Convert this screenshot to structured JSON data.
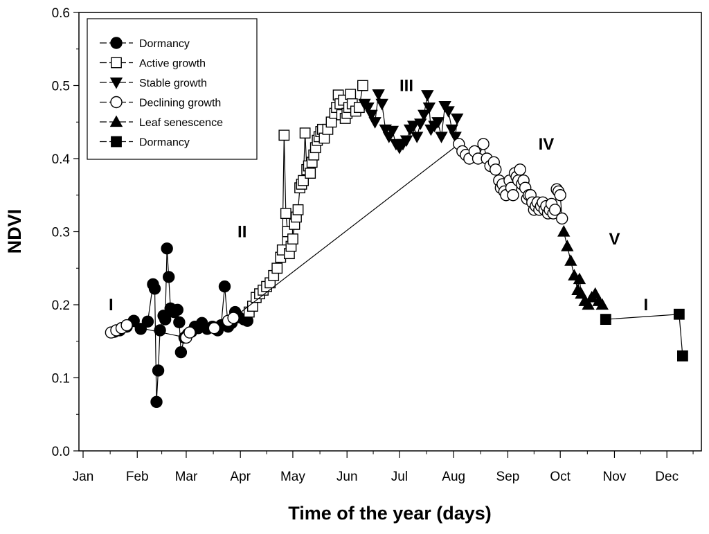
{
  "chart_data": {
    "type": "scatter",
    "xlabel": "Time of the year (days)",
    "ylabel": "NDVI",
    "xlim": [
      1,
      348
    ],
    "ylim": [
      0.0,
      0.6
    ],
    "x_ticks": [
      {
        "label": "Jan",
        "value": 1
      },
      {
        "label": "Feb",
        "value": 32
      },
      {
        "label": "Mar",
        "value": 60
      },
      {
        "label": "Apr",
        "value": 91
      },
      {
        "label": "May",
        "value": 121
      },
      {
        "label": "Jun",
        "value": 152
      },
      {
        "label": "Jul",
        "value": 182
      },
      {
        "label": "Aug",
        "value": 213
      },
      {
        "label": "Sep",
        "value": 244
      },
      {
        "label": "Oct",
        "value": 274
      },
      {
        "label": "Nov",
        "value": 305
      },
      {
        "label": "Dec",
        "value": 335
      }
    ],
    "y_ticks": [
      "0.0",
      "0.1",
      "0.2",
      "0.3",
      "0.4",
      "0.5",
      "0.6"
    ],
    "legend_position": "top-left",
    "series": [
      {
        "name": "Dormancy",
        "marker": "circle-filled",
        "points": [
          [
            19,
            0.163
          ],
          [
            22,
            0.165
          ],
          [
            26,
            0.17
          ],
          [
            30,
            0.178
          ],
          [
            34,
            0.167
          ],
          [
            38,
            0.177
          ],
          [
            41,
            0.228
          ],
          [
            42,
            0.222
          ],
          [
            43,
            0.067
          ],
          [
            44,
            0.11
          ],
          [
            45,
            0.165
          ],
          [
            47,
            0.185
          ],
          [
            48,
            0.18
          ],
          [
            49,
            0.277
          ],
          [
            50,
            0.238
          ],
          [
            51,
            0.195
          ],
          [
            53,
            0.19
          ],
          [
            55,
            0.193
          ],
          [
            56,
            0.176
          ],
          [
            57,
            0.135
          ],
          [
            59,
            0.155
          ],
          [
            61,
            0.16
          ],
          [
            63,
            0.163
          ],
          [
            65,
            0.17
          ],
          [
            67,
            0.168
          ],
          [
            69,
            0.175
          ],
          [
            72,
            0.167
          ],
          [
            75,
            0.17
          ],
          [
            78,
            0.165
          ],
          [
            80,
            0.172
          ],
          [
            82,
            0.225
          ],
          [
            84,
            0.17
          ],
          [
            86,
            0.175
          ],
          [
            88,
            0.19
          ],
          [
            90,
            0.183
          ],
          [
            93,
            0.18
          ],
          [
            95,
            0.178
          ]
        ]
      },
      {
        "name": "Active growth",
        "marker": "square-open",
        "points": [
          [
            96,
            0.19
          ],
          [
            98,
            0.198
          ],
          [
            100,
            0.21
          ],
          [
            102,
            0.215
          ],
          [
            104,
            0.22
          ],
          [
            106,
            0.225
          ],
          [
            108,
            0.23
          ],
          [
            110,
            0.24
          ],
          [
            112,
            0.25
          ],
          [
            114,
            0.265
          ],
          [
            115,
            0.275
          ],
          [
            116,
            0.432
          ],
          [
            117,
            0.325
          ],
          [
            118,
            0.3
          ],
          [
            119,
            0.27
          ],
          [
            120,
            0.28
          ],
          [
            121,
            0.29
          ],
          [
            122,
            0.31
          ],
          [
            123,
            0.32
          ],
          [
            124,
            0.33
          ],
          [
            125,
            0.36
          ],
          [
            126,
            0.365
          ],
          [
            127,
            0.37
          ],
          [
            128,
            0.435
          ],
          [
            129,
            0.385
          ],
          [
            130,
            0.39
          ],
          [
            131,
            0.38
          ],
          [
            132,
            0.395
          ],
          [
            133,
            0.405
          ],
          [
            134,
            0.415
          ],
          [
            135,
            0.425
          ],
          [
            136,
            0.43
          ],
          [
            137,
            0.437
          ],
          [
            138,
            0.44
          ],
          [
            139,
            0.428
          ],
          [
            141,
            0.44
          ],
          [
            143,
            0.45
          ],
          [
            145,
            0.462
          ],
          [
            146,
            0.47
          ],
          [
            147,
            0.487
          ],
          [
            148,
            0.475
          ],
          [
            149,
            0.46
          ],
          [
            150,
            0.48
          ],
          [
            151,
            0.455
          ],
          [
            152,
            0.462
          ],
          [
            153,
            0.47
          ],
          [
            154,
            0.488
          ],
          [
            155,
            0.475
          ],
          [
            157,
            0.465
          ],
          [
            159,
            0.47
          ],
          [
            161,
            0.5
          ]
        ]
      },
      {
        "name": "Stable growth",
        "marker": "triangle-down-filled",
        "points": [
          [
            162,
            0.475
          ],
          [
            164,
            0.47
          ],
          [
            166,
            0.46
          ],
          [
            168,
            0.45
          ],
          [
            170,
            0.488
          ],
          [
            172,
            0.475
          ],
          [
            174,
            0.44
          ],
          [
            176,
            0.43
          ],
          [
            178,
            0.438
          ],
          [
            180,
            0.42
          ],
          [
            182,
            0.415
          ],
          [
            184,
            0.42
          ],
          [
            186,
            0.425
          ],
          [
            188,
            0.44
          ],
          [
            190,
            0.445
          ],
          [
            192,
            0.43
          ],
          [
            194,
            0.448
          ],
          [
            196,
            0.46
          ],
          [
            198,
            0.487
          ],
          [
            199,
            0.47
          ],
          [
            200,
            0.44
          ],
          [
            202,
            0.445
          ],
          [
            204,
            0.45
          ],
          [
            206,
            0.43
          ],
          [
            208,
            0.472
          ],
          [
            210,
            0.465
          ],
          [
            212,
            0.44
          ],
          [
            214,
            0.43
          ],
          [
            215,
            0.455
          ]
        ]
      },
      {
        "name": "Declining growth",
        "marker": "circle-open",
        "points": [
          [
            17,
            0.162
          ],
          [
            20,
            0.165
          ],
          [
            23,
            0.168
          ],
          [
            26,
            0.172
          ],
          [
            60,
            0.155
          ],
          [
            62,
            0.162
          ],
          [
            76,
            0.168
          ],
          [
            84,
            0.178
          ],
          [
            87,
            0.182
          ],
          [
            216,
            0.42
          ],
          [
            218,
            0.41
          ],
          [
            220,
            0.405
          ],
          [
            222,
            0.4
          ],
          [
            225,
            0.41
          ],
          [
            227,
            0.4
          ],
          [
            230,
            0.42
          ],
          [
            232,
            0.4
          ],
          [
            234,
            0.39
          ],
          [
            236,
            0.395
          ],
          [
            237,
            0.385
          ],
          [
            239,
            0.37
          ],
          [
            240,
            0.36
          ],
          [
            241,
            0.365
          ],
          [
            242,
            0.355
          ],
          [
            243,
            0.35
          ],
          [
            245,
            0.37
          ],
          [
            246,
            0.36
          ],
          [
            247,
            0.35
          ],
          [
            248,
            0.38
          ],
          [
            249,
            0.375
          ],
          [
            250,
            0.37
          ],
          [
            251,
            0.385
          ],
          [
            252,
            0.365
          ],
          [
            253,
            0.37
          ],
          [
            254,
            0.36
          ],
          [
            255,
            0.345
          ],
          [
            256,
            0.35
          ],
          [
            257,
            0.35
          ],
          [
            258,
            0.34
          ],
          [
            259,
            0.33
          ],
          [
            260,
            0.335
          ],
          [
            261,
            0.34
          ],
          [
            262,
            0.33
          ],
          [
            263,
            0.335
          ],
          [
            264,
            0.34
          ],
          [
            265,
            0.33
          ],
          [
            266,
            0.335
          ],
          [
            267,
            0.325
          ],
          [
            268,
            0.33
          ],
          [
            269,
            0.338
          ],
          [
            270,
            0.325
          ],
          [
            271,
            0.33
          ],
          [
            272,
            0.358
          ],
          [
            273,
            0.355
          ],
          [
            274,
            0.35
          ],
          [
            275,
            0.318
          ]
        ]
      },
      {
        "name": "Leaf senescence",
        "marker": "triangle-up-filled",
        "points": [
          [
            276,
            0.3
          ],
          [
            278,
            0.28
          ],
          [
            280,
            0.26
          ],
          [
            282,
            0.24
          ],
          [
            284,
            0.22
          ],
          [
            285,
            0.235
          ],
          [
            286,
            0.215
          ],
          [
            288,
            0.205
          ],
          [
            290,
            0.2
          ],
          [
            292,
            0.21
          ],
          [
            294,
            0.215
          ],
          [
            296,
            0.205
          ],
          [
            298,
            0.2
          ]
        ]
      },
      {
        "name": "Dormancy",
        "marker": "square-filled",
        "points": [
          [
            300,
            0.18
          ],
          [
            342,
            0.187
          ],
          [
            344,
            0.13
          ]
        ]
      }
    ],
    "annotations": [
      {
        "text": "I",
        "x": 17,
        "y": 0.2
      },
      {
        "text": "II",
        "x": 92,
        "y": 0.3
      },
      {
        "text": "III",
        "x": 186,
        "y": 0.5
      },
      {
        "text": "IV",
        "x": 266,
        "y": 0.42
      },
      {
        "text": "V",
        "x": 305,
        "y": 0.29
      },
      {
        "text": "I",
        "x": 323,
        "y": 0.2
      }
    ]
  }
}
